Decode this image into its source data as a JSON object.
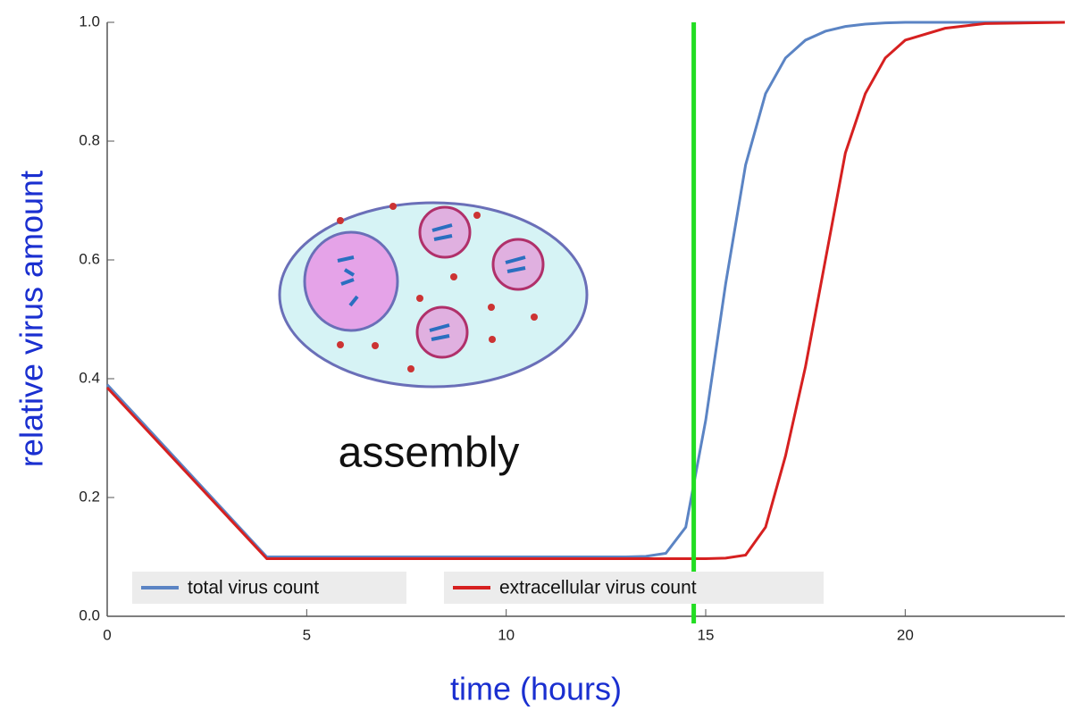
{
  "chart_data": {
    "type": "line",
    "x_label": "time (hours)",
    "y_label": "relative virus amount",
    "annotation": "assembly",
    "x": [
      0,
      4,
      13,
      13.5,
      14,
      14.5,
      15,
      15.5,
      16,
      16.5,
      17,
      17.5,
      18,
      18.5,
      19,
      19.5,
      20,
      21,
      22,
      24
    ],
    "series": [
      {
        "name": "total virus count",
        "color": "#5b84c4",
        "values": [
          0.39,
          0.1,
          0.1,
          0.101,
          0.106,
          0.15,
          0.33,
          0.56,
          0.76,
          0.88,
          0.94,
          0.97,
          0.985,
          0.993,
          0.997,
          0.999,
          1,
          1,
          1,
          1
        ]
      },
      {
        "name": "extracellular virus count",
        "color": "#d62020",
        "values": [
          0.385,
          0.097,
          0.097,
          0.097,
          0.097,
          0.097,
          0.097,
          0.098,
          0.103,
          0.15,
          0.27,
          0.42,
          0.6,
          0.78,
          0.88,
          0.94,
          0.97,
          0.99,
          0.998,
          1
        ]
      }
    ],
    "marker_x": 14.7,
    "marker_color": "#22dd22",
    "xlim": [
      0,
      24
    ],
    "ylim": [
      0,
      1
    ],
    "xticks": [
      0,
      5,
      10,
      15,
      20
    ],
    "yticks": [
      {
        "value": 0,
        "label": "0.0"
      },
      0.2,
      0.4,
      0.6,
      0.8,
      {
        "value": 1,
        "label": "1.0"
      }
    ],
    "legend": "bottom"
  }
}
